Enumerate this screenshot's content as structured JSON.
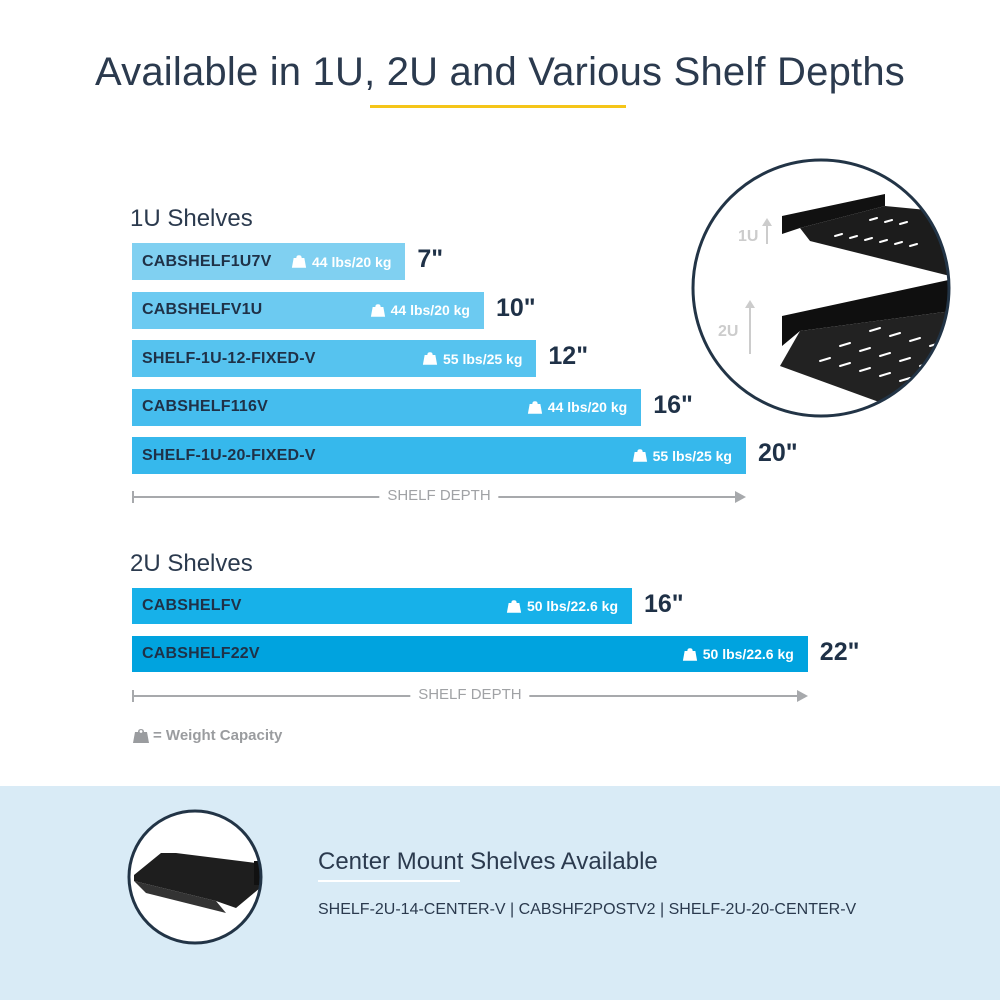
{
  "title": "Available in 1U, 2U and Various Shelf Depths",
  "colors": {
    "title": "#2b3a4e",
    "accent_underline": "#f5c518",
    "axis": "#a7a9ac",
    "band": "#d9ebf6"
  },
  "chart_data": [
    {
      "type": "bar",
      "orientation": "horizontal",
      "title": "1U Shelves",
      "xlabel": "SHELF DEPTH",
      "categories": [
        "CABSHELF1U7V",
        "CABSHELFV1U",
        "SHELF-1U-12-FIXED-V",
        "CABSHELF116V",
        "SHELF-1U-20-FIXED-V"
      ],
      "values": [
        7,
        10,
        12,
        16,
        20
      ],
      "data_labels": [
        "7\"",
        "10\"",
        "12\"",
        "16\"",
        "20\""
      ],
      "weight_labels": [
        "44 lbs/20 kg",
        "44 lbs/20 kg",
        "55 lbs/25 kg",
        "44 lbs/20 kg",
        "55 lbs/25 kg"
      ],
      "bar_colors": [
        "#80d0f1",
        "#6ccaf1",
        "#56c3ef",
        "#45bdee",
        "#36b8ec"
      ]
    },
    {
      "type": "bar",
      "orientation": "horizontal",
      "title": "2U Shelves",
      "xlabel": "SHELF DEPTH",
      "categories": [
        "CABSHELFV",
        "CABSHELF22V"
      ],
      "values": [
        16,
        22
      ],
      "data_labels": [
        "16\"",
        "22\""
      ],
      "weight_labels": [
        "50 lbs/22.6 kg",
        "50 lbs/22.6 kg"
      ],
      "bar_colors": [
        "#17b1e9",
        "#00a3df"
      ]
    }
  ],
  "legend": {
    "icon": "weight-icon",
    "label": "= Weight Capacity"
  },
  "photo_labels": {
    "one_u": "1U",
    "two_u": "2U"
  },
  "center_mount": {
    "title": "Center Mount Shelves Available",
    "models": "SHELF-2U-14-CENTER-V | CABSHF2POSTV2 | SHELF-2U-20-CENTER-V"
  }
}
